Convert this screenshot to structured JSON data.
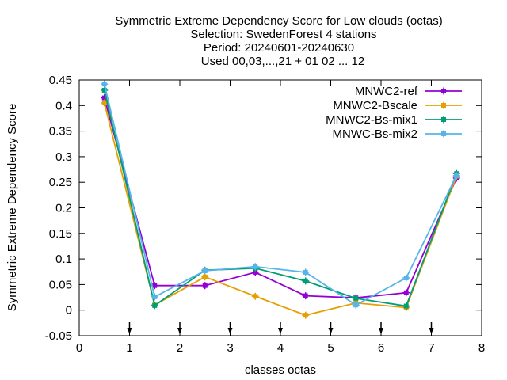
{
  "chart_data": {
    "type": "line",
    "title_lines": [
      "Symmetric Extreme Dependency Score  for Low clouds (octas)",
      "Selection: SwedenForest      4 stations",
      "Period: 20240601-20240630",
      "Used 00,03,...,21 + 01 02 ... 12"
    ],
    "xlabel": "classes octas",
    "ylabel": "Symmetric Extreme Dependency Score",
    "xlim": [
      0,
      8
    ],
    "ylim": [
      -0.05,
      0.45
    ],
    "xticks": [
      "0",
      "1",
      "2",
      "3",
      "4",
      "5",
      "6",
      "7",
      "8"
    ],
    "yticks": [
      "-0.05",
      "0",
      "0.05",
      "0.1",
      "0.15",
      "0.2",
      "0.25",
      "0.3",
      "0.35",
      "0.4",
      "0.45"
    ],
    "grid": false,
    "legend_position": "top-right",
    "x": [
      0.5,
      1.5,
      2.5,
      3.5,
      4.5,
      5.5,
      6.5,
      7.5
    ],
    "series": [
      {
        "name": "MNWC2-ref",
        "color": "#9400d3",
        "values": [
          0.415,
          0.048,
          0.048,
          0.074,
          0.028,
          0.024,
          0.034,
          0.258
        ]
      },
      {
        "name": "MNWC2-Bscale",
        "color": "#e69f00",
        "values": [
          0.405,
          0.01,
          0.065,
          0.027,
          -0.01,
          0.014,
          0.005,
          0.262
        ]
      },
      {
        "name": "MNWC2-Bs-mix1",
        "color": "#009e73",
        "values": [
          0.43,
          0.009,
          0.078,
          0.082,
          0.057,
          0.023,
          0.008,
          0.267
        ]
      },
      {
        "name": "MNWC-Bs-mix2",
        "color": "#56b4e9",
        "values": [
          0.442,
          0.026,
          0.077,
          0.085,
          0.074,
          0.01,
          0.063,
          0.263
        ]
      }
    ]
  }
}
